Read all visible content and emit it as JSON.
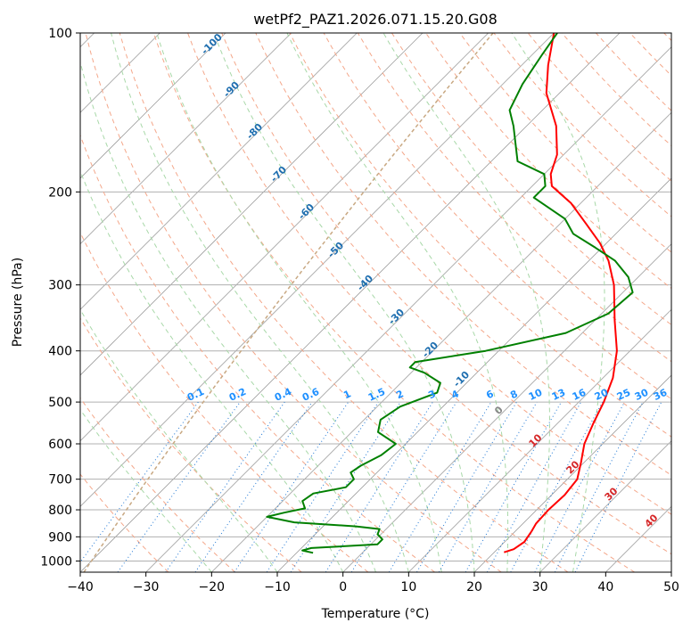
{
  "colors": {
    "temperature": "#ff0000",
    "dewpoint": "#008000",
    "isobar_grid": "#b0b0b0",
    "isotherm": "#9e9e9e",
    "dry_adiabat": "#f4a78a",
    "moist_adiabat": "#a8d8a8",
    "mixing_ratio": "#1f77d4",
    "isotherm_label": "#1f6fb0",
    "mixing_label": "#1e90ff",
    "dry_label": "#d62728",
    "moist_label": "#888888",
    "isotherm_curve": "#c8a882"
  },
  "chart_data": {
    "type": "line",
    "title": "wetPf2_PAZ1.2026.071.15.20.G08",
    "xlabel": "Temperature (°C)",
    "ylabel": "Pressure (hPa)",
    "xlim": [
      -40,
      50
    ],
    "ylim": [
      1050,
      100
    ],
    "y_scale": "log",
    "x_ticks": [
      -40,
      -30,
      -20,
      -10,
      0,
      10,
      20,
      30,
      40,
      50
    ],
    "x_tick_labels": [
      "−40",
      "−30",
      "−20",
      "−10",
      "0",
      "10",
      "20",
      "30",
      "40",
      "50"
    ],
    "y_ticks": [
      1000,
      900,
      800,
      700,
      600,
      500,
      400,
      300,
      200,
      100
    ],
    "y_tick_labels": [
      "1000",
      "900",
      "800",
      "700",
      "600",
      "500",
      "400",
      "300",
      "200",
      "100"
    ],
    "skew_per_decade_log_p": 1.0,
    "series": [
      {
        "name": "Temperature",
        "values": [
          [
            963,
            21.5
          ],
          [
            950,
            22.5
          ],
          [
            920,
            23.0
          ],
          [
            880,
            22.5
          ],
          [
            850,
            22.0
          ],
          [
            800,
            21.8
          ],
          [
            750,
            22.0
          ],
          [
            700,
            21.5
          ],
          [
            650,
            19.5
          ],
          [
            600,
            17.2
          ],
          [
            550,
            15.5
          ],
          [
            500,
            13.8
          ],
          [
            450,
            11.5
          ],
          [
            400,
            8.0
          ],
          [
            350,
            3.0
          ],
          [
            300,
            -2.5
          ],
          [
            270,
            -7.0
          ],
          [
            250,
            -11.0
          ],
          [
            230,
            -16.0
          ],
          [
            210,
            -21.5
          ],
          [
            195,
            -27.0
          ],
          [
            185,
            -29.0
          ],
          [
            170,
            -31.0
          ],
          [
            150,
            -35.5
          ],
          [
            130,
            -42.0
          ],
          [
            115,
            -46.0
          ],
          [
            100,
            -50.0
          ]
        ]
      },
      {
        "name": "Dewpoint",
        "values": [
          [
            965,
            -7.5
          ],
          [
            955,
            -9.5
          ],
          [
            945,
            -8.5
          ],
          [
            930,
            1.0
          ],
          [
            910,
            1.0
          ],
          [
            890,
            -0.5
          ],
          [
            870,
            -1.0
          ],
          [
            860,
            -5.0
          ],
          [
            845,
            -15.0
          ],
          [
            825,
            -20.0
          ],
          [
            810,
            -18.0
          ],
          [
            795,
            -15.5
          ],
          [
            770,
            -17.0
          ],
          [
            745,
            -16.5
          ],
          [
            725,
            -12.5
          ],
          [
            700,
            -12.5
          ],
          [
            680,
            -14.0
          ],
          [
            660,
            -13.5
          ],
          [
            630,
            -12.0
          ],
          [
            600,
            -11.5
          ],
          [
            570,
            -16.0
          ],
          [
            540,
            -17.5
          ],
          [
            510,
            -16.5
          ],
          [
            480,
            -13.0
          ],
          [
            460,
            -14.0
          ],
          [
            440,
            -18.0
          ],
          [
            430,
            -21.0
          ],
          [
            420,
            -21.0
          ],
          [
            400,
            -12.0
          ],
          [
            370,
            -2.5
          ],
          [
            340,
            1.0
          ],
          [
            310,
            1.5
          ],
          [
            290,
            -1.5
          ],
          [
            270,
            -6.0
          ],
          [
            255,
            -11.0
          ],
          [
            240,
            -16.5
          ],
          [
            225,
            -20.0
          ],
          [
            205,
            -28.0
          ],
          [
            195,
            -28.0
          ],
          [
            185,
            -30.0
          ],
          [
            175,
            -36.0
          ],
          [
            160,
            -39.5
          ],
          [
            150,
            -42.0
          ],
          [
            140,
            -45.0
          ],
          [
            125,
            -47.0
          ],
          [
            110,
            -48.5
          ],
          [
            100,
            -49.5
          ]
        ]
      }
    ],
    "isotherm_labels": [
      "-100",
      "-90",
      "-80",
      "-70",
      "-60",
      "-50",
      "-40",
      "-30",
      "-20",
      "-10",
      "0"
    ],
    "mixing_ratio_labels": [
      "0.1",
      "0.2",
      "0.4",
      "0.6",
      "1",
      "1.5",
      "2",
      "3",
      "4",
      "6",
      "8",
      "10",
      "13",
      "16",
      "20",
      "25",
      "30",
      "36"
    ],
    "dry_adiabat_labels": [
      "10",
      "20",
      "30",
      "40"
    ]
  }
}
